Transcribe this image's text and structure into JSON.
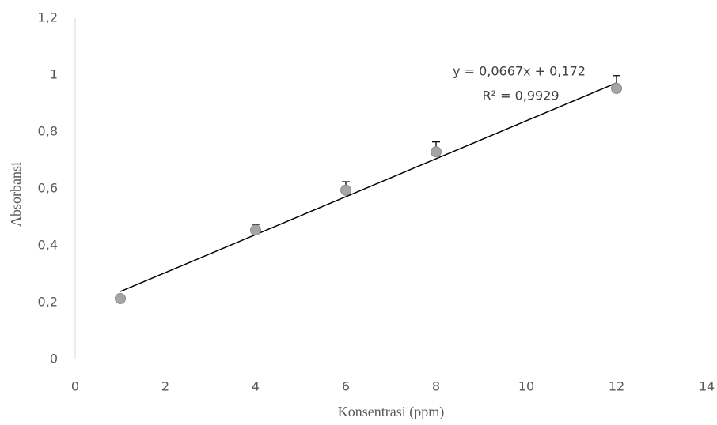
{
  "chart_data": {
    "type": "scatter",
    "x_label": "Konsentrasi (ppm)",
    "y_label": "Absorbansi",
    "x": [
      1,
      4,
      6,
      8,
      12
    ],
    "values": [
      0.214,
      0.455,
      0.595,
      0.73,
      0.953
    ],
    "errors": [
      0.005,
      0.02,
      0.03,
      0.035,
      0.045
    ],
    "color": "#a5a5a5",
    "xlim": [
      0,
      14
    ],
    "xticks": [
      0,
      2,
      4,
      6,
      8,
      10,
      12,
      14
    ],
    "ylim": [
      0,
      1.2
    ],
    "yticks": [
      0,
      {
        "value": 0.2,
        "label": "0,2"
      },
      {
        "value": 0.4,
        "label": "0,4"
      },
      {
        "value": 0.6,
        "label": "0,6"
      },
      {
        "value": 0.8,
        "label": "0,8"
      },
      1,
      {
        "value": 1.2,
        "label": "1,2"
      }
    ],
    "grid": false,
    "trendline": {
      "equation": "y = 0,0667x + 0,172",
      "r2": "R² = 0,9929",
      "slope": 0.0667,
      "intercept": 0.172
    }
  }
}
